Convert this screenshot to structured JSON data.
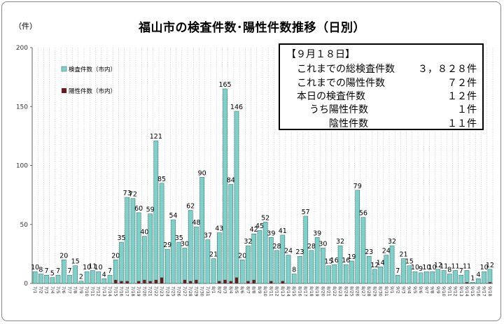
{
  "chart_data": {
    "type": "bar",
    "title": "福山市の検査件数･陽性件数推移（日別）",
    "ylabel": "（件）",
    "ylim": [
      0,
      200
    ],
    "yticks": [
      0,
      50,
      100,
      150,
      200
    ],
    "grid": "vertical lines between categories",
    "legend_position": "upper-left",
    "categories": [
      "7/1",
      "7/2",
      "7/3",
      "7/4",
      "7/5",
      "7/6",
      "7/7",
      "7/8",
      "7/9",
      "7/10",
      "7/11",
      "7/12",
      "7/13",
      "7/14",
      "7/15",
      "7/16",
      "7/17",
      "7/18",
      "7/19",
      "7/20",
      "7/21",
      "7/22",
      "7/23",
      "7/24",
      "7/25",
      "7/26",
      "7/27",
      "7/28",
      "7/29",
      "7/30",
      "7/31",
      "8/1",
      "8/2",
      "8/3",
      "8/4",
      "8/5",
      "8/6",
      "8/7",
      "8/8",
      "8/9",
      "8/10",
      "8/11",
      "8/12",
      "8/13",
      "8/14",
      "8/15",
      "8/16",
      "8/17",
      "8/18",
      "8/19",
      "8/20",
      "8/21",
      "8/22",
      "8/23",
      "8/24",
      "8/25",
      "8/26",
      "8/27",
      "8/28",
      "8/29",
      "8/30",
      "8/31",
      "9/1",
      "9/2",
      "9/3",
      "9/4",
      "9/5",
      "9/6",
      "9/7",
      "9/8",
      "9/9",
      "9/10",
      "9/11",
      "9/12",
      "9/13",
      "9/14",
      "9/15",
      "9/16",
      "9/17",
      "9/18"
    ],
    "series": [
      {
        "name": "検査件数（市内）",
        "color": "#7fd0c8",
        "values": [
          10,
          8,
          7,
          5,
          7,
          20,
          7,
          15,
          2,
          10,
          11,
          10,
          4,
          7,
          20,
          35,
          73,
          72,
          60,
          40,
          59,
          121,
          85,
          29,
          54,
          35,
          30,
          62,
          48,
          90,
          37,
          21,
          43,
          165,
          84,
          146,
          20,
          32,
          42,
          45,
          52,
          39,
          28,
          41,
          24,
          8,
          23,
          57,
          28,
          39,
          30,
          15,
          16,
          32,
          16,
          19,
          79,
          56,
          23,
          12,
          14,
          24,
          32,
          7,
          21,
          15,
          10,
          9,
          10,
          10,
          12,
          11,
          8,
          11,
          7,
          11,
          1,
          4,
          10,
          12
        ],
        "labels": [
          "10",
          "8",
          "7",
          "5",
          "7",
          "20",
          "7",
          "15",
          "2",
          "10",
          "11",
          "10",
          "4",
          "7",
          "20",
          "35",
          "73",
          "72",
          "60",
          "40",
          "59",
          "121",
          "85",
          "29",
          "54",
          "35",
          "30",
          "62",
          "48",
          "90",
          "37",
          "21",
          "43",
          "165",
          "84",
          "146",
          "20",
          "32",
          "42",
          "45",
          "52",
          "39",
          "28",
          "41",
          "24",
          "8",
          "23",
          "57",
          "28",
          "39",
          "30",
          "15",
          "16",
          "32",
          "16",
          "19",
          "79",
          "56",
          "23",
          "12",
          "14",
          "24",
          "32",
          "7",
          "21",
          "15",
          "10",
          "9",
          "10",
          "10",
          "12",
          "11",
          "8",
          "11",
          "7",
          "11",
          "1",
          "4",
          "10",
          "12"
        ]
      },
      {
        "name": "陽性件数（市内）",
        "color": "#6b1a1a",
        "values": [
          0,
          0,
          0,
          0,
          0,
          0,
          0,
          0,
          0,
          0,
          0,
          0,
          0,
          0,
          3,
          2,
          2,
          0,
          2,
          3,
          2,
          3,
          5,
          0,
          0,
          0,
          3,
          2,
          3,
          0,
          0,
          0,
          2,
          3,
          2,
          5,
          0,
          2,
          3,
          0,
          0,
          2,
          0,
          2,
          0,
          0,
          0,
          0,
          0,
          0,
          0,
          0,
          0,
          0,
          0,
          0,
          0,
          0,
          0,
          0,
          0,
          0,
          0,
          0,
          0,
          0,
          0,
          0,
          0,
          0,
          0,
          0,
          0,
          0,
          0,
          1,
          0,
          0,
          0,
          1
        ]
      }
    ]
  },
  "summary_box": {
    "date": "【９月１８日】",
    "rows": [
      {
        "label": "これまでの総検査件数",
        "value": "３，８２８件"
      },
      {
        "label": "これまでの陽性件数",
        "value": "７２件"
      },
      {
        "label": "本日の検査件数",
        "value": "１２件"
      },
      {
        "label": "うち陽性件数",
        "value": "１件"
      },
      {
        "label": "陰性件数",
        "value": "１１件"
      }
    ]
  }
}
